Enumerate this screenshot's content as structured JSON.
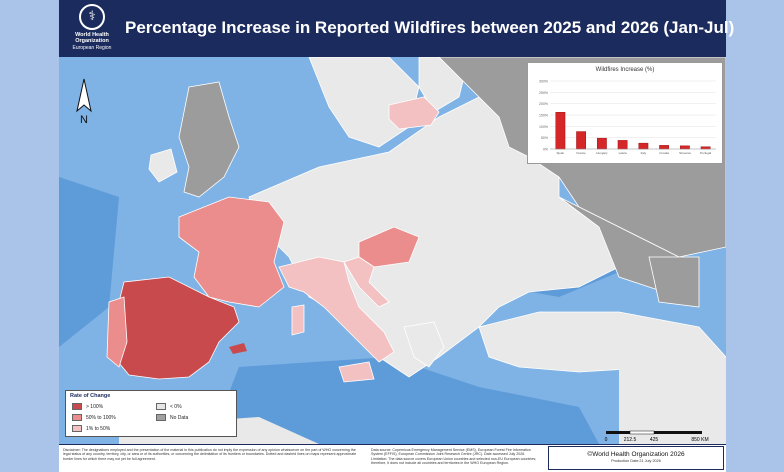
{
  "header": {
    "title": "Percentage Increase in Reported Wildfires between 2025 and 2026 (Jan-Jul)",
    "logo_line1": "World Health",
    "logo_line2": "Organization",
    "logo_region": "European Region"
  },
  "chart_data": {
    "type": "bar",
    "title": "Wildfires Increase (%)",
    "categories": [
      "Spain",
      "France",
      "Hungary",
      "Latvia",
      "Italy",
      "Croatia",
      "Slovenia",
      "Portugal"
    ],
    "values": [
      162,
      77,
      48,
      38,
      26,
      16,
      14,
      10
    ],
    "ylim": [
      0,
      300
    ],
    "yticks": [
      "0%",
      "50%",
      "100%",
      "150%",
      "200%",
      "250%",
      "300%"
    ],
    "bar_color": "#d62728",
    "tick_label_legibility": "illegible"
  },
  "legend": {
    "title": "Rate of Change",
    "items": [
      {
        "label": "> 100%",
        "color": "#c94a4d"
      },
      {
        "label": "< 0%",
        "color": "#e6e6e6"
      },
      {
        "label": "50% to 100%",
        "color": "#eb8d8c"
      },
      {
        "label": "No Data",
        "color": "#a0a0a0"
      },
      {
        "label": "1% to 50%",
        "color": "#f4c1c2"
      }
    ]
  },
  "map": {
    "north_label": "N",
    "scale_ticks": [
      "0",
      "212.5",
      "425",
      "850 KM"
    ],
    "colors": {
      "sea": "#7fb2e5",
      "deep_sea": "#5e9bd9",
      "land_decrease": "#e9e9e9",
      "no_data": "#9c9c9c",
      "gt100": "#c94a4d",
      "p50_100": "#eb8d8c",
      "p1_50": "#f4c1c2"
    }
  },
  "footer": {
    "disclaimer": "Disclaimer: The designations employed and the presentation of the material in this publication do not imply the expression of any opinion whatsoever on the part of WHO concerning the legal status of any country, territory, city, or area or of its authorities, or concerning the delimitation of its frontiers or boundaries. Dotted and dashed lines on maps represent approximate border lines for which there may not yet be full agreement.",
    "data_source": "Data source: Copernicus Emergency Management Service (EMS), European Forest Fire Information System (EFFIS), European Commission Joint Research Centre (JRC). Date accessed July 2026. Limitation: The data source covers European Union countries and selected non-EU European countries; therefore, it does not include all countries and territories in the WHO European Region.",
    "copyright": "©World Health Organization 2026",
    "production": "Production Date:21 July 2026"
  }
}
